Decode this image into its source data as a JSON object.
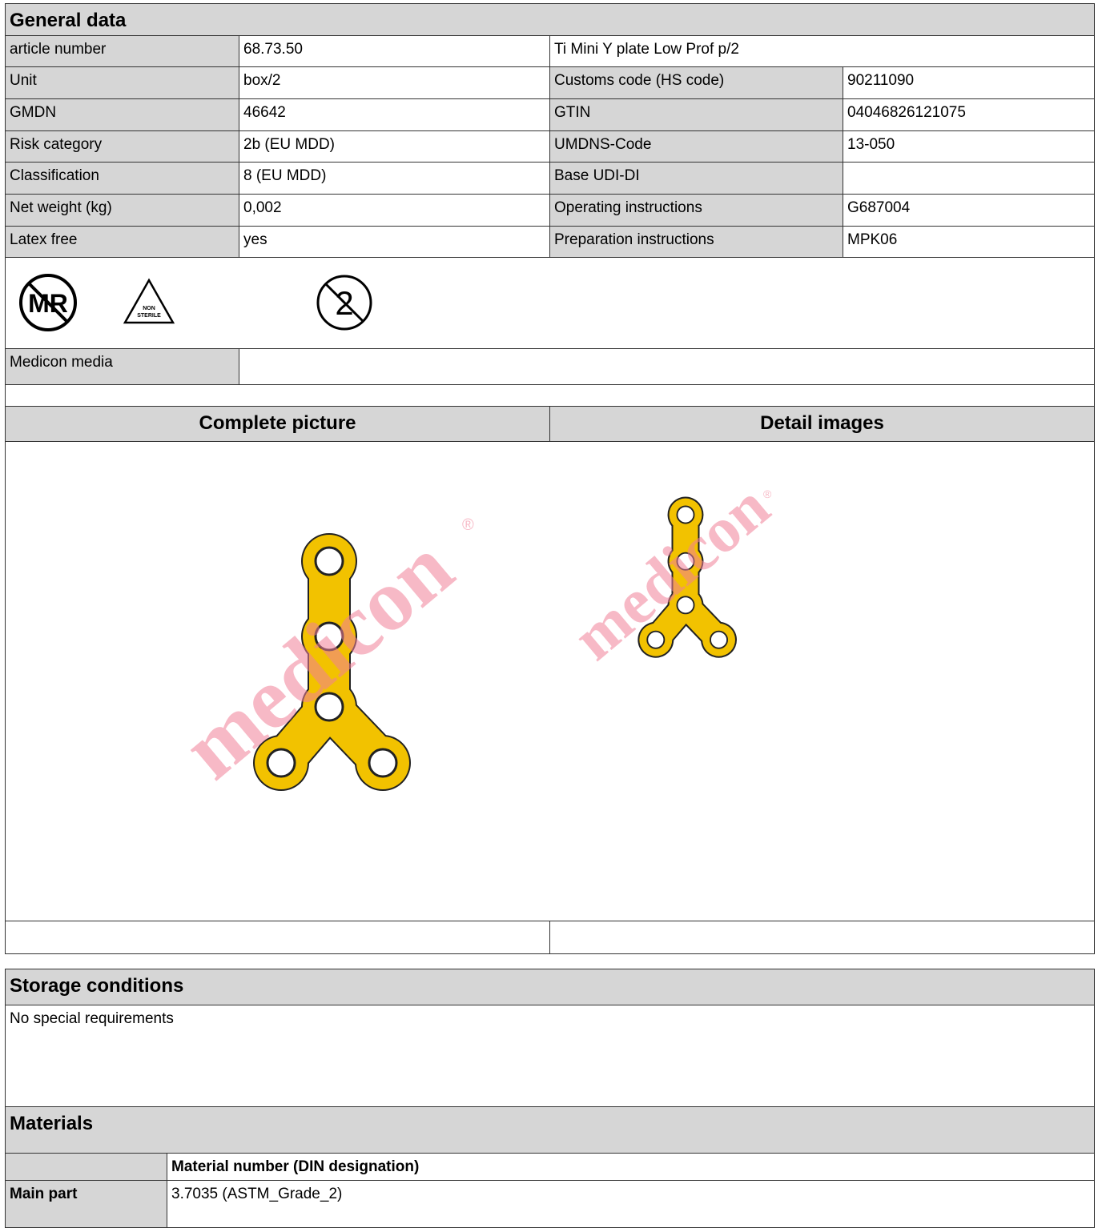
{
  "general_data": {
    "title": "General data",
    "rows": [
      [
        "article number",
        "68.73.50",
        "Ti Mini Y plate Low Prof p/2"
      ],
      [
        "Unit",
        "box/2",
        "Customs code (HS code)",
        "90211090"
      ],
      [
        "GMDN",
        "46642",
        "GTIN",
        "04046826121075"
      ],
      [
        "Risk category",
        "2b (EU MDD)",
        "UMDNS-Code",
        "13-050"
      ],
      [
        "Classification",
        "8 (EU MDD)",
        "Base UDI-DI"
      ],
      [
        "Net weight (kg)",
        "0,002",
        "Operating instructions",
        "G687004"
      ],
      [
        "Latex free",
        "yes",
        "Preparation instructions",
        "MPK06"
      ]
    ]
  },
  "symbols": {
    "mr": "MR",
    "non": "NON",
    "sterile": "STERILE",
    "single_use": "2"
  },
  "medicon_media": {
    "label": "Medicon media"
  },
  "pictures": {
    "complete_title": "Complete picture",
    "detail_title": "Detail images",
    "watermark": "medicon",
    "trademark": "®"
  },
  "storage": {
    "title": "Storage conditions",
    "text": "No special requirements"
  },
  "materials": {
    "title": "Materials",
    "column": "Material number (DIN designation)",
    "rows": [
      [
        "Main part",
        "3.7035 (ASTM_Grade_2)"
      ]
    ]
  }
}
